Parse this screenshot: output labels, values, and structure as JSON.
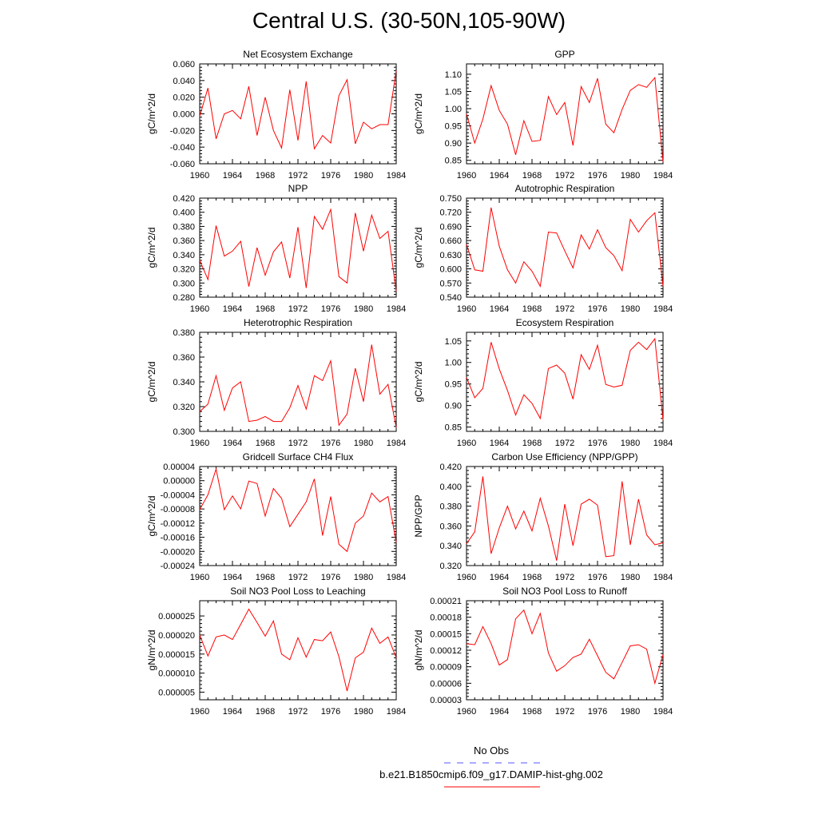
{
  "page_title": "Central U.S. (30-50N,105-90W)",
  "chart_data": [
    {
      "type": "line",
      "title": "Net Ecosystem Exchange",
      "ylabel": "gC/m^2/d",
      "xlim": [
        1960,
        1984
      ],
      "ylim": [
        -0.06,
        0.06
      ],
      "xticks": [
        "1960",
        "1964",
        "1968",
        "1972",
        "1976",
        "1980",
        "1984"
      ],
      "yticks": [
        "-0.060",
        "-0.040",
        "-0.020",
        "0.000",
        "0.020",
        "0.040",
        "0.060"
      ],
      "x": [
        1960,
        1961,
        1962,
        1963,
        1964,
        1965,
        1966,
        1967,
        1968,
        1969,
        1970,
        1971,
        1972,
        1973,
        1974,
        1975,
        1976,
        1977,
        1978,
        1979,
        1980,
        1981,
        1982,
        1983,
        1984
      ],
      "series": [
        {
          "color": "#ff0000",
          "values": [
            -0.003,
            0.031,
            -0.03,
            0.0,
            0.004,
            -0.006,
            0.033,
            -0.026,
            0.02,
            -0.02,
            -0.041,
            0.029,
            -0.032,
            0.039,
            -0.042,
            -0.026,
            -0.035,
            0.022,
            0.041,
            -0.036,
            -0.01,
            -0.018,
            -0.013,
            -0.013,
            0.052
          ]
        }
      ]
    },
    {
      "type": "line",
      "title": "GPP",
      "ylabel": "gC/m^2/d",
      "xlim": [
        1960,
        1984
      ],
      "ylim": [
        0.84,
        1.13
      ],
      "xticks": [
        "1960",
        "1964",
        "1968",
        "1972",
        "1976",
        "1980",
        "1984"
      ],
      "yticks": [
        "0.85",
        "0.90",
        "0.95",
        "1.00",
        "1.05",
        "1.10"
      ],
      "x": [
        1960,
        1961,
        1962,
        1963,
        1964,
        1965,
        1966,
        1967,
        1968,
        1969,
        1970,
        1971,
        1972,
        1973,
        1974,
        1975,
        1976,
        1977,
        1978,
        1979,
        1980,
        1981,
        1982,
        1983,
        1984
      ],
      "series": [
        {
          "color": "#ff0000",
          "values": [
            0.985,
            0.9,
            0.97,
            1.067,
            0.995,
            0.955,
            0.866,
            0.965,
            0.905,
            0.908,
            1.035,
            0.983,
            1.018,
            0.893,
            1.064,
            1.018,
            1.088,
            0.955,
            0.93,
            0.998,
            1.053,
            1.07,
            1.062,
            1.09,
            0.845
          ]
        }
      ]
    },
    {
      "type": "line",
      "title": "NPP",
      "ylabel": "gC/m^2/d",
      "xlim": [
        1960,
        1984
      ],
      "ylim": [
        0.28,
        0.42
      ],
      "xticks": [
        "1960",
        "1964",
        "1968",
        "1972",
        "1976",
        "1980",
        "1984"
      ],
      "yticks": [
        "0.280",
        "0.300",
        "0.320",
        "0.340",
        "0.360",
        "0.380",
        "0.400",
        "0.420"
      ],
      "x": [
        1960,
        1961,
        1962,
        1963,
        1964,
        1965,
        1966,
        1967,
        1968,
        1969,
        1970,
        1971,
        1972,
        1973,
        1974,
        1975,
        1976,
        1977,
        1978,
        1979,
        1980,
        1981,
        1982,
        1983,
        1984
      ],
      "series": [
        {
          "color": "#ff0000",
          "values": [
            0.332,
            0.305,
            0.381,
            0.338,
            0.345,
            0.359,
            0.295,
            0.35,
            0.311,
            0.344,
            0.358,
            0.307,
            0.379,
            0.293,
            0.394,
            0.376,
            0.404,
            0.309,
            0.3,
            0.399,
            0.345,
            0.396,
            0.363,
            0.373,
            0.288
          ]
        }
      ]
    },
    {
      "type": "line",
      "title": "Autotrophic Respiration",
      "ylabel": "gC/m^2/d",
      "xlim": [
        1960,
        1984
      ],
      "ylim": [
        0.54,
        0.75
      ],
      "xticks": [
        "1960",
        "1964",
        "1968",
        "1972",
        "1976",
        "1980",
        "1984"
      ],
      "yticks": [
        "0.540",
        "0.570",
        "0.600",
        "0.630",
        "0.660",
        "0.690",
        "0.720",
        "0.750"
      ],
      "x": [
        1960,
        1961,
        1962,
        1963,
        1964,
        1965,
        1966,
        1967,
        1968,
        1969,
        1970,
        1971,
        1972,
        1973,
        1974,
        1975,
        1976,
        1977,
        1978,
        1979,
        1980,
        1981,
        1982,
        1983,
        1984
      ],
      "series": [
        {
          "color": "#ff0000",
          "values": [
            0.652,
            0.598,
            0.595,
            0.73,
            0.648,
            0.598,
            0.57,
            0.615,
            0.595,
            0.563,
            0.678,
            0.676,
            0.638,
            0.602,
            0.672,
            0.642,
            0.683,
            0.645,
            0.628,
            0.596,
            0.705,
            0.678,
            0.702,
            0.719,
            0.563
          ]
        }
      ]
    },
    {
      "type": "line",
      "title": "Heterotrophic Respiration",
      "ylabel": "gC/m^2/d",
      "xlim": [
        1960,
        1984
      ],
      "ylim": [
        0.3,
        0.38
      ],
      "xticks": [
        "1960",
        "1964",
        "1968",
        "1972",
        "1976",
        "1980",
        "1984"
      ],
      "yticks": [
        "0.300",
        "0.320",
        "0.340",
        "0.360",
        "0.380"
      ],
      "x": [
        1960,
        1961,
        1962,
        1963,
        1964,
        1965,
        1966,
        1967,
        1968,
        1969,
        1970,
        1971,
        1972,
        1973,
        1974,
        1975,
        1976,
        1977,
        1978,
        1979,
        1980,
        1981,
        1982,
        1983,
        1984
      ],
      "series": [
        {
          "color": "#ff0000",
          "values": [
            0.316,
            0.322,
            0.345,
            0.317,
            0.335,
            0.34,
            0.308,
            0.309,
            0.312,
            0.308,
            0.308,
            0.319,
            0.337,
            0.318,
            0.345,
            0.341,
            0.357,
            0.305,
            0.314,
            0.351,
            0.324,
            0.37,
            0.33,
            0.338,
            0.303
          ]
        }
      ]
    },
    {
      "type": "line",
      "title": "Ecosystem Respiration",
      "ylabel": "gC/m^2/d",
      "xlim": [
        1960,
        1984
      ],
      "ylim": [
        0.84,
        1.07
      ],
      "xticks": [
        "1960",
        "1964",
        "1968",
        "1972",
        "1976",
        "1980",
        "1984"
      ],
      "yticks": [
        "0.85",
        "0.90",
        "0.95",
        "1.00",
        "1.05"
      ],
      "x": [
        1960,
        1961,
        1962,
        1963,
        1964,
        1965,
        1966,
        1967,
        1968,
        1969,
        1970,
        1971,
        1972,
        1973,
        1974,
        1975,
        1976,
        1977,
        1978,
        1979,
        1980,
        1981,
        1982,
        1983,
        1984
      ],
      "series": [
        {
          "color": "#ff0000",
          "values": [
            0.965,
            0.918,
            0.94,
            1.047,
            0.985,
            0.935,
            0.878,
            0.925,
            0.905,
            0.87,
            0.986,
            0.994,
            0.975,
            0.915,
            1.018,
            0.984,
            1.04,
            0.949,
            0.943,
            0.947,
            1.028,
            1.047,
            1.03,
            1.055,
            0.866
          ]
        }
      ]
    },
    {
      "type": "line",
      "title": "Gridcell Surface CH4 Flux",
      "ylabel": "gC/m^2/d",
      "xlim": [
        1960,
        1984
      ],
      "ylim": [
        -0.00024,
        4e-05
      ],
      "xticks": [
        "1960",
        "1964",
        "1968",
        "1972",
        "1976",
        "1980",
        "1984"
      ],
      "yticks": [
        "-0.00024",
        "-0.00020",
        "-0.00016",
        "-0.00012",
        "-0.00008",
        "-0.00004",
        "0.00000",
        "0.00004"
      ],
      "x": [
        1960,
        1961,
        1962,
        1963,
        1964,
        1965,
        1966,
        1967,
        1968,
        1969,
        1970,
        1971,
        1972,
        1973,
        1974,
        1975,
        1976,
        1977,
        1978,
        1979,
        1980,
        1981,
        1982,
        1983,
        1984
      ],
      "series": [
        {
          "color": "#ff0000",
          "values": [
            -8.2e-05,
            -4e-05,
            3.3e-05,
            -8.2e-05,
            -4.3e-05,
            -8e-05,
            -1e-06,
            -8e-06,
            -0.0001,
            -2.2e-05,
            -5e-05,
            -0.00013,
            -9.5e-05,
            -6e-05,
            5e-06,
            -0.000155,
            -4.5e-05,
            -0.00018,
            -0.0002,
            -0.00012,
            -0.0001,
            -3.5e-05,
            -6e-05,
            -4.5e-05,
            -0.000175
          ]
        }
      ]
    },
    {
      "type": "line",
      "title": "Carbon Use Efficiency (NPP/GPP)",
      "ylabel": "NPP/GPP",
      "xlim": [
        1960,
        1984
      ],
      "ylim": [
        0.32,
        0.42
      ],
      "xticks": [
        "1960",
        "1964",
        "1968",
        "1972",
        "1976",
        "1980",
        "1984"
      ],
      "yticks": [
        "0.320",
        "0.340",
        "0.360",
        "0.380",
        "0.400",
        "0.420"
      ],
      "x": [
        1960,
        1961,
        1962,
        1963,
        1964,
        1965,
        1966,
        1967,
        1968,
        1969,
        1970,
        1971,
        1972,
        1973,
        1974,
        1975,
        1976,
        1977,
        1978,
        1979,
        1980,
        1981,
        1982,
        1983,
        1984
      ],
      "series": [
        {
          "color": "#ff0000",
          "values": [
            0.342,
            0.354,
            0.41,
            0.332,
            0.358,
            0.38,
            0.357,
            0.375,
            0.355,
            0.388,
            0.36,
            0.325,
            0.382,
            0.34,
            0.382,
            0.387,
            0.381,
            0.329,
            0.33,
            0.405,
            0.341,
            0.387,
            0.351,
            0.341,
            0.343
          ]
        }
      ]
    },
    {
      "type": "line",
      "title": "Soil NO3 Pool Loss to Leaching",
      "ylabel": "gN/m^2/d",
      "xlim": [
        1960,
        1984
      ],
      "ylim": [
        3e-06,
        2.9e-05
      ],
      "xticks": [
        "1960",
        "1964",
        "1968",
        "1972",
        "1976",
        "1980",
        "1984"
      ],
      "yticks": [
        "0.000005",
        "0.000010",
        "0.000015",
        "0.000020",
        "0.000025"
      ],
      "x": [
        1960,
        1961,
        1962,
        1963,
        1964,
        1965,
        1966,
        1967,
        1968,
        1969,
        1970,
        1971,
        1972,
        1973,
        1974,
        1975,
        1976,
        1977,
        1978,
        1979,
        1980,
        1981,
        1982,
        1983,
        1984
      ],
      "series": [
        {
          "color": "#ff0000",
          "values": [
            2e-05,
            1.45e-05,
            1.95e-05,
            2e-05,
            1.88e-05,
            2.28e-05,
            2.68e-05,
            2.33e-05,
            1.97e-05,
            2.37e-05,
            1.5e-05,
            1.35e-05,
            1.93e-05,
            1.42e-05,
            1.88e-05,
            1.85e-05,
            2.08e-05,
            1.43e-05,
            5.3e-06,
            1.4e-05,
            1.55e-05,
            2.18e-05,
            1.78e-05,
            1.95e-05,
            1.4e-05
          ]
        }
      ]
    },
    {
      "type": "line",
      "title": "Soil NO3 Pool Loss to Runoff",
      "ylabel": "gN/m^2/d",
      "xlim": [
        1960,
        1984
      ],
      "ylim": [
        3e-05,
        0.00021
      ],
      "xticks": [
        "1960",
        "1964",
        "1968",
        "1972",
        "1976",
        "1980",
        "1984"
      ],
      "yticks": [
        "0.00003",
        "0.00006",
        "0.00009",
        "0.00012",
        "0.00015",
        "0.00018",
        "0.00021"
      ],
      "x": [
        1960,
        1961,
        1962,
        1963,
        1964,
        1965,
        1966,
        1967,
        1968,
        1969,
        1970,
        1971,
        1972,
        1973,
        1974,
        1975,
        1976,
        1977,
        1978,
        1979,
        1980,
        1981,
        1982,
        1983,
        1984
      ],
      "series": [
        {
          "color": "#ff0000",
          "values": [
            0.000132,
            0.00013,
            0.000163,
            0.000132,
            9.3e-05,
            0.000103,
            0.000177,
            0.000193,
            0.00015,
            0.000187,
            0.000115,
            8.2e-05,
            9.2e-05,
            0.000107,
            0.000113,
            0.00014,
            0.00011,
            8e-05,
            6.8e-05,
            9.8e-05,
            0.000128,
            0.00013,
            0.000122,
            6e-05,
            0.000112
          ]
        }
      ]
    }
  ],
  "legend": {
    "entries": [
      {
        "label": "No Obs",
        "color": "#0000ff",
        "style": "dashed"
      },
      {
        "label": "b.e21.B1850cmip6.f09_g17.DAMIP-hist-ghg.002",
        "color": "#ff0000",
        "style": "solid"
      }
    ]
  }
}
